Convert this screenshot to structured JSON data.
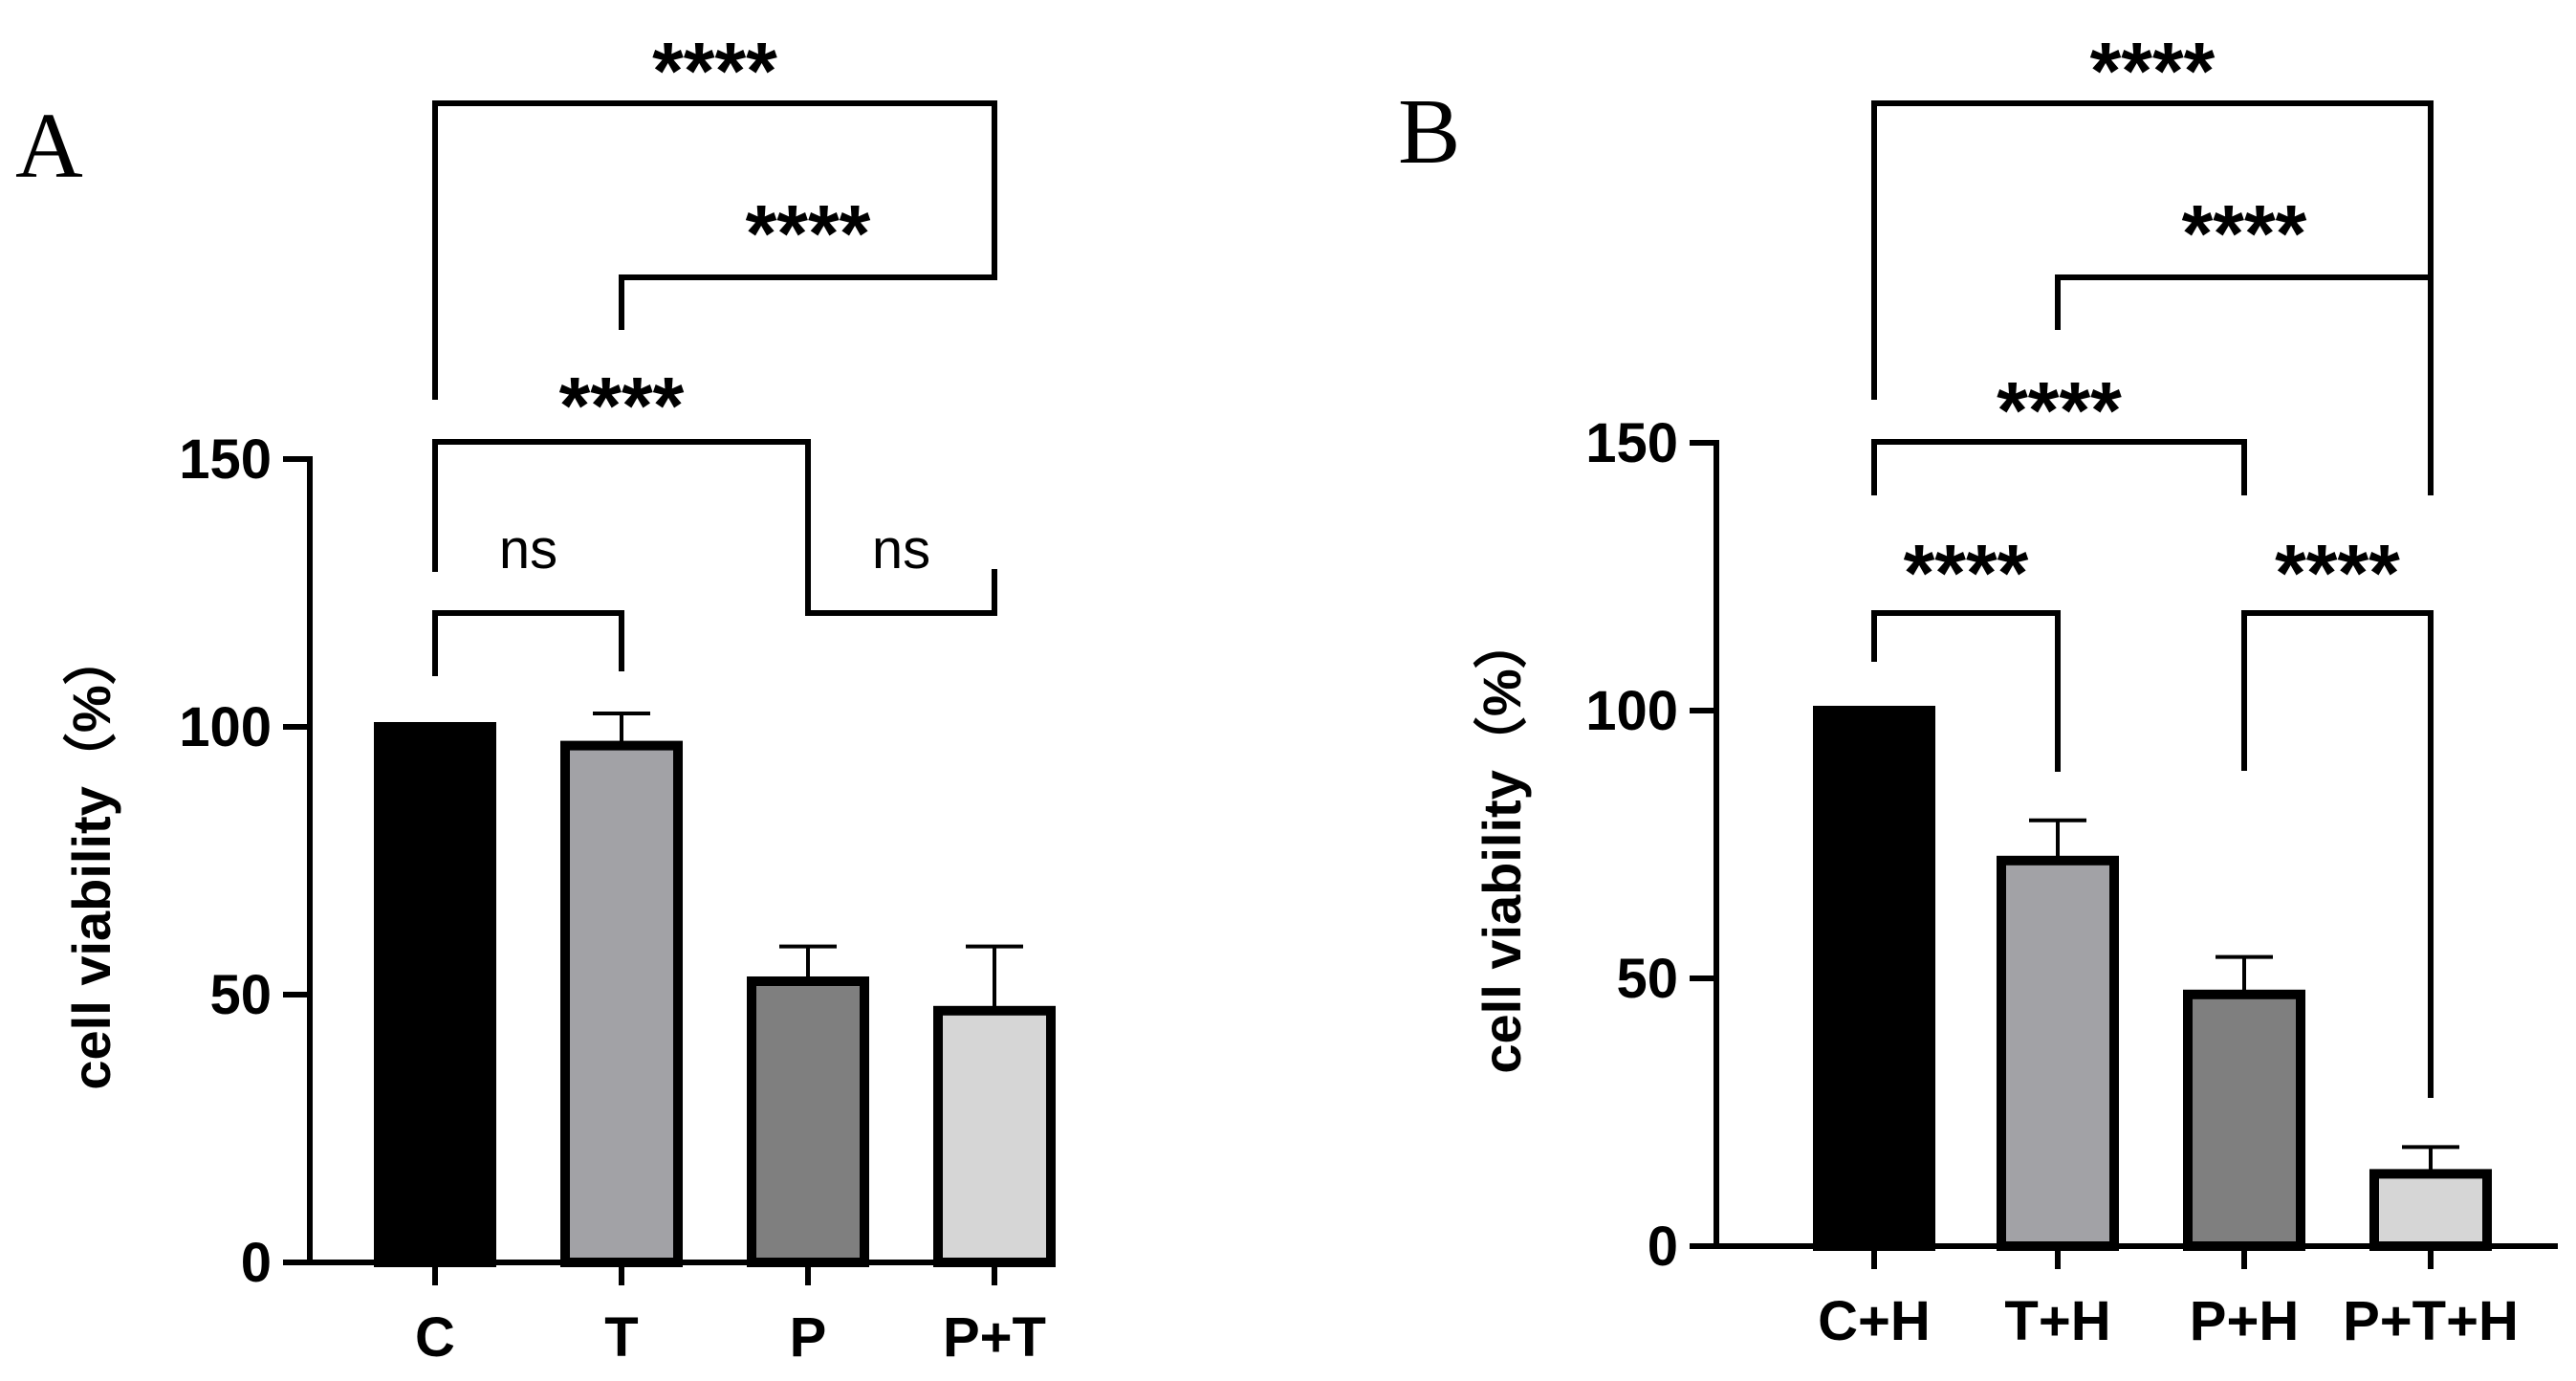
{
  "chart_data": [
    {
      "panel": "A",
      "type": "bar",
      "categories": [
        "C",
        "T",
        "P",
        "P+T"
      ],
      "values": [
        100,
        96.5,
        52.5,
        47
      ],
      "errors": [
        0,
        6,
        6.5,
        12
      ],
      "colors": [
        "#000000",
        "#a2a2a6",
        "#7f7f7f",
        "#d6d6d6"
      ],
      "title": "",
      "xlabel": "",
      "ylabel": "cell viability（%）",
      "ylim": [
        0,
        150
      ],
      "yticks": [
        0,
        50,
        100,
        150
      ],
      "ytick_labels": [
        "0",
        "50",
        "100",
        "150"
      ],
      "comparisons": [
        {
          "from": "C",
          "to": "T",
          "label": "ns"
        },
        {
          "from": "P",
          "to": "P+T",
          "label": "ns"
        },
        {
          "from": "C",
          "to": "P",
          "label": "****"
        },
        {
          "from": "T",
          "to": "P+T",
          "label": "****"
        },
        {
          "from": "C",
          "to": "P+T",
          "label": "****"
        }
      ]
    },
    {
      "panel": "B",
      "type": "bar",
      "categories": [
        "C+H",
        "T+H",
        "P+H",
        "P+T+H"
      ],
      "values": [
        100,
        72,
        47,
        13.5
      ],
      "errors": [
        0,
        7.5,
        7,
        5
      ],
      "colors": [
        "#000000",
        "#a2a2a6",
        "#7f7f7f",
        "#d6d6d6"
      ],
      "title": "",
      "xlabel": "",
      "ylabel": "cell viability（%）",
      "ylim": [
        0,
        150
      ],
      "yticks": [
        0,
        50,
        100,
        150
      ],
      "ytick_labels": [
        "0",
        "50",
        "100",
        "150"
      ],
      "comparisons": [
        {
          "from": "C+H",
          "to": "T+H",
          "label": "****"
        },
        {
          "from": "P+H",
          "to": "P+T+H",
          "label": "****"
        },
        {
          "from": "C+H",
          "to": "P+H",
          "label": "****"
        },
        {
          "from": "T+H",
          "to": "P+T+H",
          "label": "****"
        },
        {
          "from": "C+H",
          "to": "P+T+H",
          "label": "****"
        }
      ]
    }
  ]
}
